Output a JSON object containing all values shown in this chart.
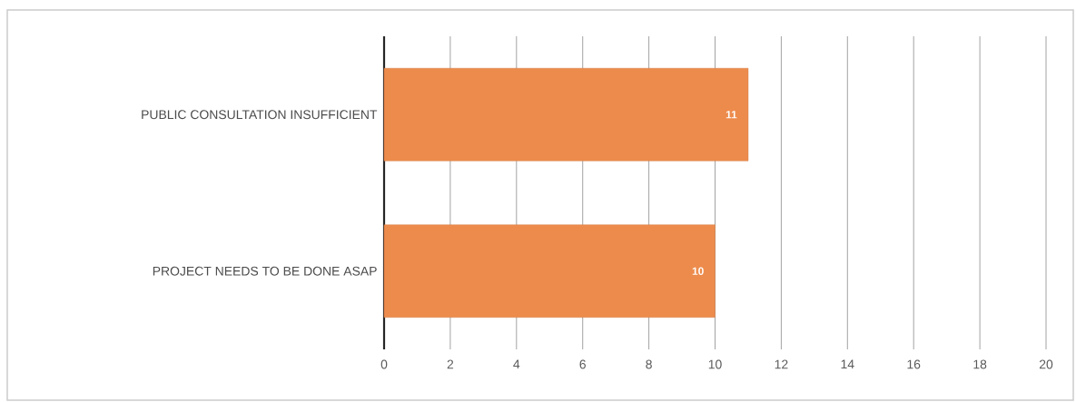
{
  "chart_data": {
    "type": "bar",
    "orientation": "horizontal",
    "categories": [
      "PUBLIC CONSULTATION INSUFFICIENT",
      "PROJECT NEEDS TO BE DONE ASAP"
    ],
    "values": [
      11,
      10
    ],
    "color": "#ed8b4c",
    "xlim": [
      0,
      20
    ],
    "xticks": [
      0,
      2,
      4,
      6,
      8,
      10,
      12,
      14,
      16,
      18,
      20
    ],
    "grid": "x",
    "data_labels": true
  }
}
